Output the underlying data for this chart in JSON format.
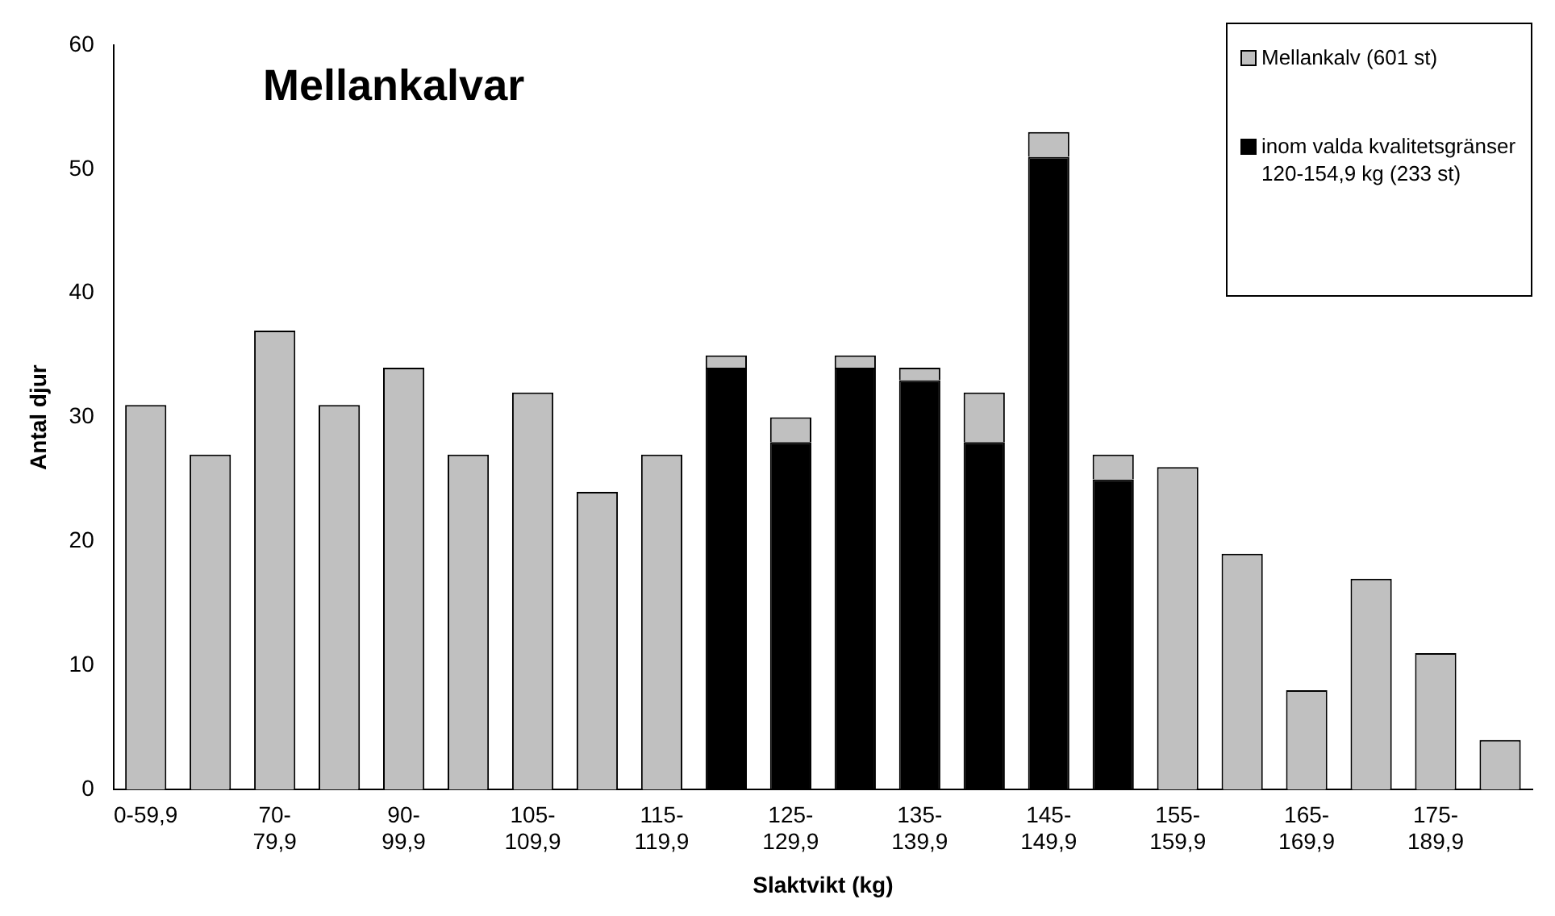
{
  "chart_data": {
    "type": "bar",
    "title": "Mellankalvar",
    "xlabel": "Slaktvikt (kg)",
    "ylabel": "Antal djur",
    "categories": [
      "0-59,9",
      null,
      "70-79,9",
      null,
      "90-99,9",
      null,
      "105-109,9",
      null,
      "115-119,9",
      null,
      "125-129,9",
      null,
      "135-139,9",
      null,
      "145-149,9",
      null,
      "155-159,9",
      null,
      "165-169,9",
      null,
      "175-189,9",
      null
    ],
    "stacked": true,
    "series": [
      {
        "name": "inom valda kvalitetsgränser 120-154,9 kg (233 st)",
        "color": "#000000",
        "values": [
          null,
          null,
          null,
          null,
          null,
          null,
          null,
          null,
          null,
          34,
          28,
          34,
          33,
          28,
          51,
          25,
          null,
          null,
          null,
          null,
          null,
          null
        ]
      },
      {
        "name": "Mellankalv (601 st)",
        "color": "#c0c0c0",
        "values": [
          31,
          27,
          37,
          31,
          34,
          27,
          32,
          24,
          27,
          1,
          2,
          1,
          1,
          4,
          2,
          2,
          26,
          19,
          8,
          17,
          11,
          4
        ]
      }
    ],
    "ylim": [
      0,
      60
    ],
    "yticks": [
      0,
      10,
      20,
      30,
      40,
      50,
      60
    ],
    "legend": "top right"
  }
}
